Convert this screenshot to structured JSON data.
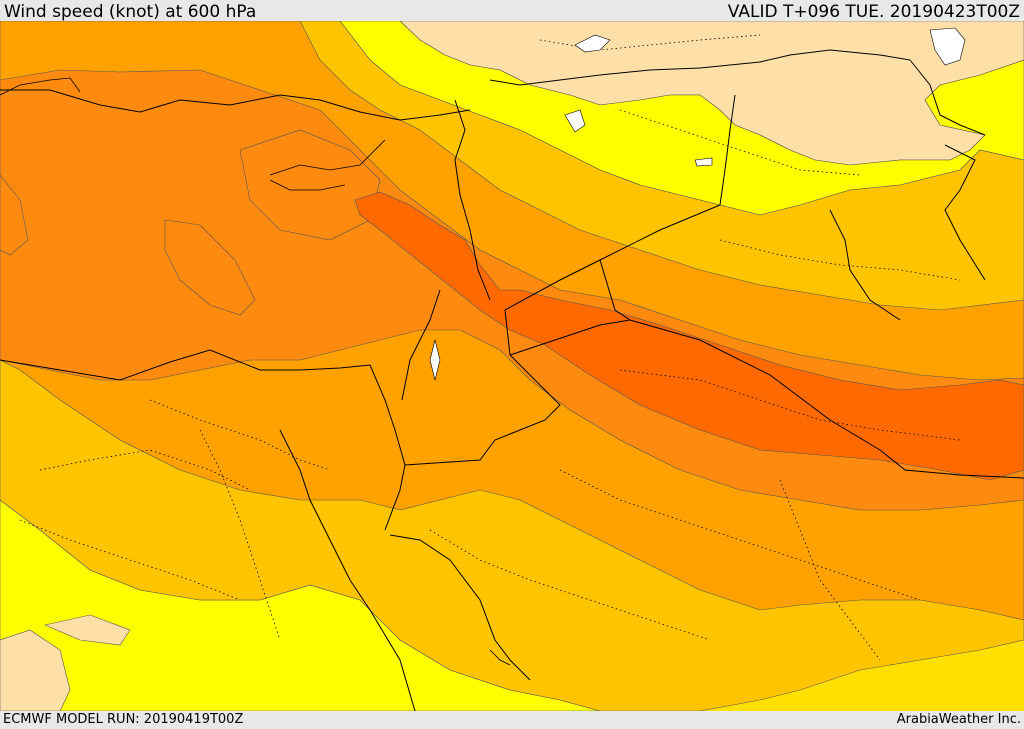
{
  "header": {
    "title": "Wind speed (knot) at 600 hPa",
    "valid": "VALID T+096 TUE. 20190423T00Z"
  },
  "footer": {
    "model_run": "ECMWF MODEL RUN: 20190419T00Z",
    "credit": "ArabiaWeather Inc."
  },
  "map": {
    "variable": "wind speed",
    "level": "600 hPa",
    "colors": {
      "calm": "#ffdfa8",
      "light": "#ffff00",
      "moderate": "#ffe000",
      "fresh": "#ffc400",
      "strong": "#ffa200",
      "stronger": "#ff8a10",
      "jet": "#ff6a00",
      "contour": "#555555",
      "border": "#000000"
    }
  }
}
